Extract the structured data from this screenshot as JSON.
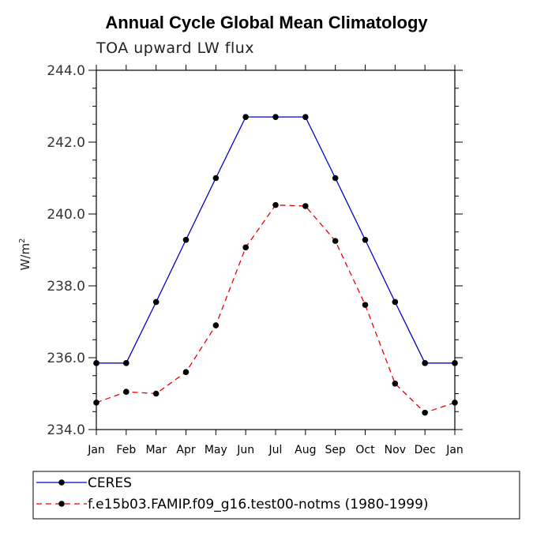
{
  "chart_data": {
    "type": "line",
    "title": "Annual Cycle Global Mean Climatology",
    "subtitle": "TOA upward LW flux",
    "ylabel": "W/m",
    "ylabel_sup": "2",
    "xlabel": "",
    "ylim": [
      234.0,
      244.0
    ],
    "yticks": [
      "234.0",
      "236.0",
      "238.0",
      "240.0",
      "242.0",
      "244.0"
    ],
    "categories": [
      "Jan",
      "Feb",
      "Mar",
      "Apr",
      "May",
      "Jun",
      "Jul",
      "Aug",
      "Sep",
      "Oct",
      "Nov",
      "Dec",
      "Jan"
    ],
    "series": [
      {
        "name": "CERES",
        "color": "#0000cc",
        "dash": "solid",
        "values": [
          235.85,
          235.85,
          237.55,
          239.28,
          241.0,
          242.7,
          242.7,
          242.7,
          241.0,
          239.28,
          237.55,
          235.85,
          235.85
        ]
      },
      {
        "name": "f.e15b03.FAMIP.f09_g16.test00-notms (1980-1999)",
        "color": "#ee0000",
        "dash": "dashed",
        "values": [
          234.75,
          235.05,
          235.0,
          235.6,
          236.9,
          239.07,
          240.25,
          240.22,
          239.25,
          237.47,
          235.28,
          234.47,
          234.75
        ]
      }
    ],
    "grid": false,
    "legend": "bottom"
  }
}
